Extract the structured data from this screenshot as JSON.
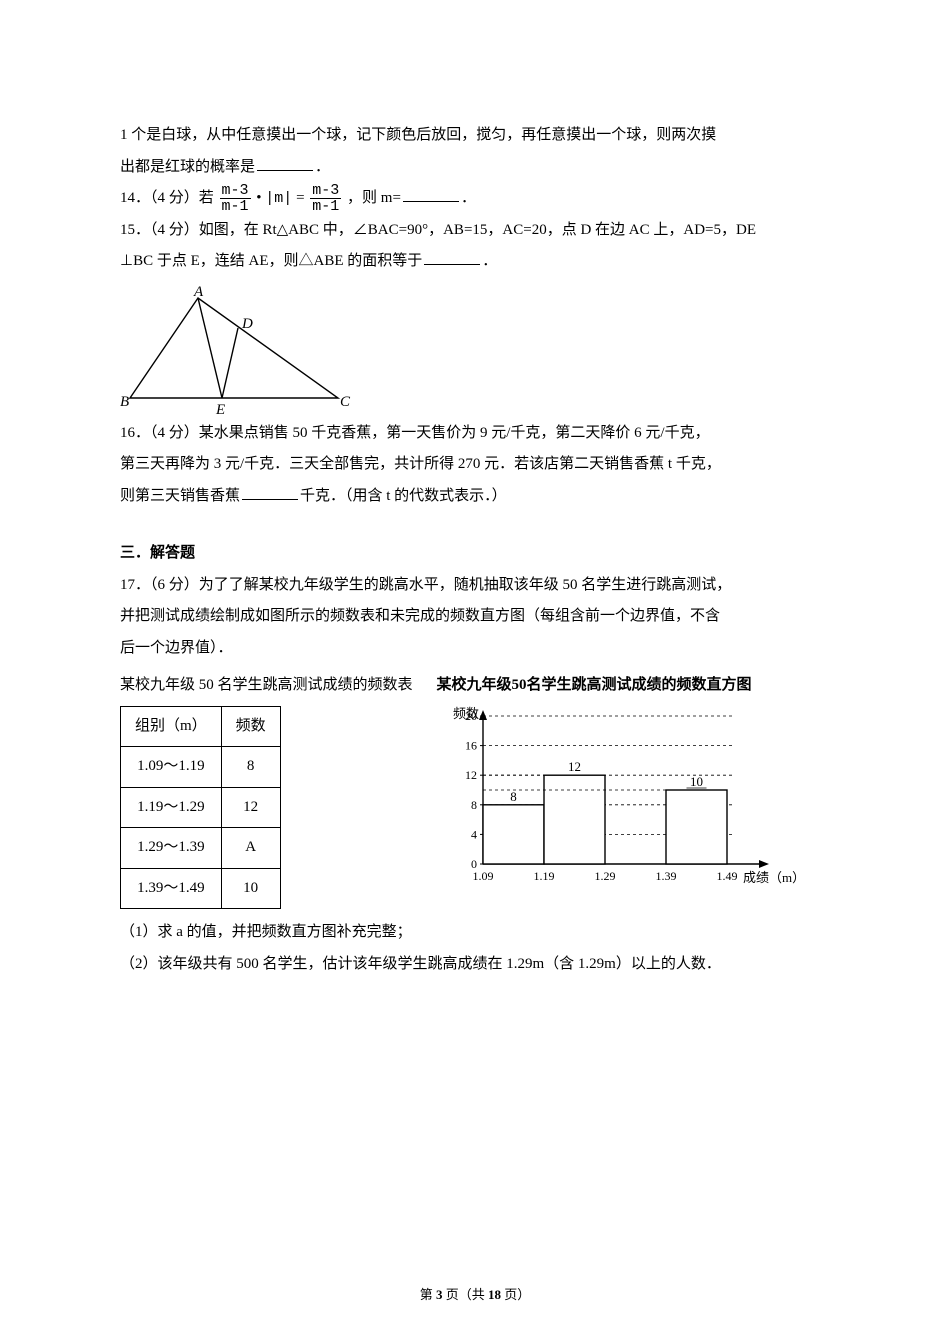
{
  "q_cont": {
    "line1": "1 个是白球，从中任意摸出一个球，记下颜色后放回，搅匀，再任意摸出一个球，则两次摸",
    "line2": "出都是红球的概率是",
    "period": "．"
  },
  "q14": {
    "prefix": "14．（4 分）若",
    "frac1_num": "m-3",
    "frac1_den": "m-1",
    "dot": "•",
    "abs_m": "|m|",
    "eq": "=",
    "frac2_num": "m-3",
    "frac2_den": "m-1",
    "then": "，则 m=",
    "period": "．"
  },
  "q15": {
    "line1": "15．（4 分）如图，在 Rt△ABC 中，∠BAC=90°，AB=15，AC=20，点 D 在边 AC 上，AD=5，DE",
    "line2_a": "⊥BC 于点 E，连结 AE，则△ABE 的面积等于",
    "period": "．"
  },
  "triangle": {
    "A": "A",
    "B": "B",
    "C": "C",
    "D": "D",
    "E": "E",
    "stroke": "#000000",
    "fill": "none",
    "italic": "italic"
  },
  "q16": {
    "line1": "16．（4 分）某水果点销售 50 千克香蕉，第一天售价为 9 元/千克，第二天降价 6 元/千克，",
    "line2": "第三天再降为 3 元/千克．三天全部售完，共计所得 270 元．若该店第二天销售香蕉 t 千克，",
    "line3_a": "则第三天销售香蕉",
    "line3_b": "千克．（用含 t 的代数式表示．）"
  },
  "section3": "三．解答题",
  "q17": {
    "line1": "17．（6 分）为了了解某校九年级学生的跳高水平，随机抽取该年级 50 名学生进行跳高测试，",
    "line2": "并把测试成绩绘制成如图所示的频数表和未完成的频数直方图（每组含前一个边界值，不含",
    "line3": "后一个边界值）．",
    "caption": "某校九年级 50 名学生跳高测试成绩的频数表",
    "chart_title": "某校九年级50名学生跳高测试成绩的频数直方图",
    "sub1": "（1）求 a 的值，并把频数直方图补充完整；",
    "sub2": "（2）该年级共有 500 名学生，估计该年级学生跳高成绩在 1.29m（含 1.29m）以上的人数．"
  },
  "table": {
    "col1": "组别（m）",
    "col2": "频数",
    "rows": [
      {
        "range": "1.09～1.19",
        "freq": "8"
      },
      {
        "range": "1.19～1.29",
        "freq": "12"
      },
      {
        "range": "1.29～1.39",
        "freq": "A"
      },
      {
        "range": "1.39～1.49",
        "freq": "10"
      }
    ]
  },
  "chart": {
    "type": "histogram",
    "categories": [
      "1.09",
      "1.19",
      "1.29",
      "1.39",
      "1.49"
    ],
    "values": [
      8,
      12,
      null,
      10
    ],
    "bar_labels": [
      "8",
      "12",
      "",
      "10"
    ],
    "label_12": "12",
    "ylabel": "频数",
    "xlabel": "成绩（m）",
    "ylim": [
      0,
      20
    ],
    "yticks": [
      0,
      4,
      8,
      12,
      16,
      20
    ],
    "bar_fill": "#ffffff",
    "bar_stroke": "#000000",
    "axis_color": "#000000",
    "dash_color": "#000000",
    "bg": "#ffffff",
    "label_fontsize": 12
  },
  "footer": {
    "a": "第",
    "b": "3",
    "c": "页（共",
    "d": "18",
    "e": "页）"
  }
}
